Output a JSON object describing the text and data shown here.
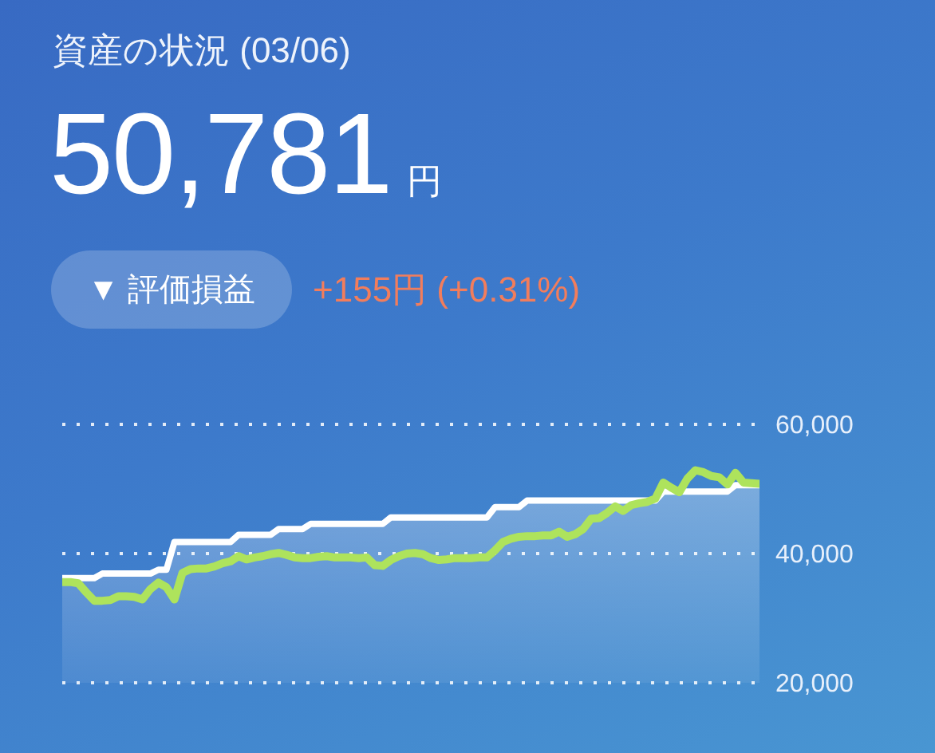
{
  "chart_data": {
    "type": "line",
    "title": "資産の状況 (03/06)",
    "subtitle": "50,781円",
    "annotations": [
      "▼ 評価損益",
      "+155円 (+0.31%)"
    ],
    "categories": [
      null,
      null,
      null,
      null,
      null,
      null,
      null,
      null,
      null,
      null,
      null,
      null,
      null,
      null,
      null,
      null,
      null,
      null,
      null,
      null,
      null,
      null,
      null,
      null,
      null,
      null,
      null,
      null,
      null,
      null,
      null,
      null,
      null,
      null,
      null,
      null,
      null,
      null,
      null,
      null,
      null,
      null,
      null,
      null,
      null,
      null,
      null,
      null,
      null,
      null,
      null,
      null,
      null,
      null,
      null,
      null,
      null,
      null,
      null,
      null,
      null,
      null,
      null,
      null,
      null,
      null,
      null,
      null,
      null,
      null,
      null,
      null,
      null,
      null,
      null,
      null,
      null,
      null,
      null,
      null,
      null,
      null,
      null,
      null,
      null,
      null,
      null,
      null
    ],
    "series": [
      {
        "type": "area",
        "color": "#ffffff",
        "values": [
          36200,
          36200,
          36200,
          36200,
          36200,
          36900,
          36900,
          36900,
          36900,
          36900,
          36900,
          36900,
          37500,
          37500,
          41800,
          41800,
          41800,
          41800,
          41800,
          41800,
          41800,
          41800,
          42900,
          42900,
          42900,
          42900,
          42900,
          43800,
          43800,
          43800,
          43800,
          44600,
          44600,
          44600,
          44600,
          44600,
          44600,
          44600,
          44600,
          44600,
          44600,
          45600,
          45600,
          45600,
          45600,
          45600,
          45600,
          45600,
          45600,
          45600,
          45600,
          45600,
          45600,
          45600,
          47200,
          47200,
          47200,
          47200,
          48200,
          48200,
          48200,
          48200,
          48200,
          48200,
          48200,
          48200,
          48200,
          48200,
          48200,
          48200,
          48200,
          48200,
          48200,
          48200,
          48200,
          49600,
          49600,
          49600,
          49600,
          49600,
          49600,
          49600,
          49600,
          49600,
          50600,
          50600,
          50600,
          50600
        ]
      },
      {
        "color": "#aee35c",
        "values": [
          35600,
          35600,
          35400,
          34000,
          32700,
          32700,
          32800,
          33400,
          33400,
          33300,
          32900,
          34500,
          35500,
          34800,
          32900,
          37000,
          37600,
          37700,
          37700,
          38000,
          38500,
          38800,
          39600,
          39100,
          39400,
          39600,
          39900,
          40100,
          39800,
          39400,
          39300,
          39300,
          39500,
          39600,
          39400,
          39400,
          39400,
          39300,
          39400,
          38200,
          38100,
          39000,
          39600,
          40000,
          40100,
          39900,
          39300,
          39000,
          39100,
          39300,
          39300,
          39300,
          39400,
          39400,
          40500,
          41800,
          42300,
          42600,
          42700,
          42700,
          42800,
          42800,
          43400,
          42600,
          43000,
          43800,
          45400,
          45500,
          46300,
          47300,
          46600,
          47500,
          47800,
          48000,
          48500,
          51000,
          50200,
          49500,
          51600,
          52900,
          52600,
          52000,
          51800,
          50700,
          52500,
          51000,
          50900,
          50800
        ]
      }
    ],
    "ylim": [
      20000,
      60000
    ],
    "yticks": [
      {
        "value": 20000,
        "label": "20,000"
      },
      {
        "value": 40000,
        "label": "40,000"
      },
      {
        "value": 60000,
        "label": "60,000"
      }
    ],
    "grid": "y",
    "tick_labels": "y"
  }
}
